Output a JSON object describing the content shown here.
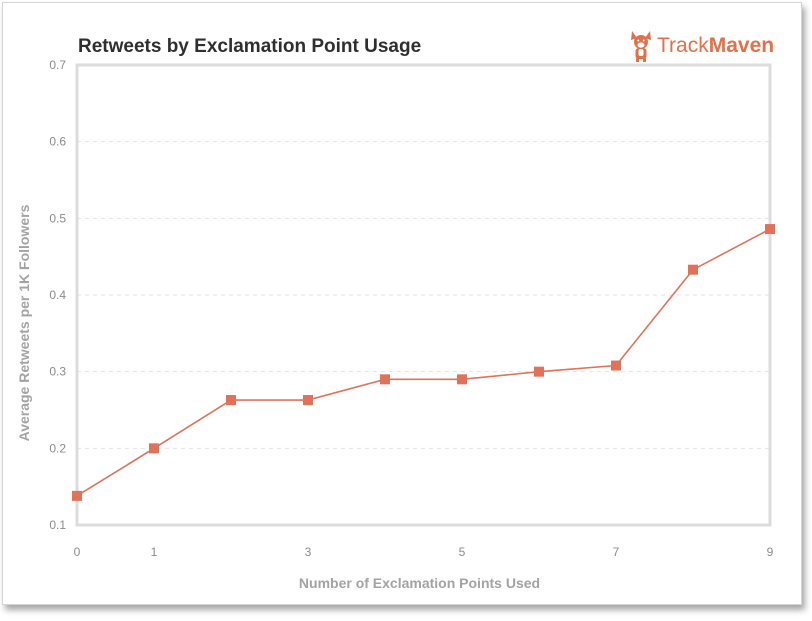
{
  "header": {
    "title": "Retweets by Exclamation Point Usage",
    "logo_text_light": "Track",
    "logo_text_bold": "Maven"
  },
  "chart_data": {
    "type": "line",
    "title": "Retweets by Exclamation Point Usage",
    "xlabel": "Number of Exclamation Points Used",
    "ylabel": "Average Retweets per 1K Followers",
    "xlim": [
      0,
      9
    ],
    "ylim": [
      0.1,
      0.7
    ],
    "xticks": [
      0,
      1,
      3,
      5,
      7,
      9
    ],
    "yticks": [
      0.1,
      0.2,
      0.3,
      0.4,
      0.5,
      0.6,
      0.7
    ],
    "grid": "horizontal dashed",
    "series": [
      {
        "color": "#e0725a",
        "marker": "square",
        "x": [
          0,
          1,
          2,
          3,
          4,
          5,
          6,
          7,
          8,
          9
        ],
        "y": [
          0.138,
          0.2,
          0.263,
          0.263,
          0.29,
          0.29,
          0.3,
          0.308,
          0.433,
          0.486
        ]
      }
    ]
  }
}
